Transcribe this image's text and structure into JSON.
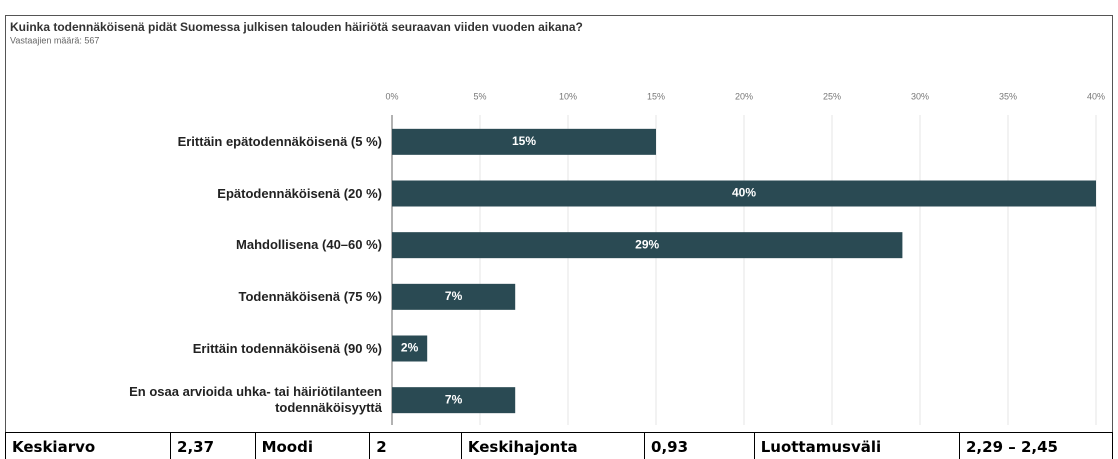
{
  "chart_data": {
    "type": "bar",
    "orientation": "horizontal",
    "title": "Kuinka todennäköisenä pidät Suomessa julkisen talouden häiriötä seuraavan viiden vuoden aikana?",
    "subtitle": "Vastaajien määrä: 567",
    "categories": [
      "Erittäin epätodennäköisenä (5 %)",
      "Epätodennäköisenä (20 %)",
      "Mahdollisena (40–60 %)",
      "Todennäköisenä (75 %)",
      "Erittäin todennäköisenä (90 %)",
      "En osaa arvioida uhka- tai häiriötilanteen todennäköisyyttä"
    ],
    "values": [
      15,
      40,
      29,
      7,
      2,
      7
    ],
    "value_labels": [
      "15%",
      "40%",
      "29%",
      "7%",
      "2%",
      "7%"
    ],
    "color": "#2a4a53",
    "xlim": [
      0,
      40
    ],
    "xticks": [
      {
        "value": 0,
        "label": "0%"
      },
      {
        "value": 5,
        "label": "5%"
      },
      {
        "value": 10,
        "label": "10%"
      },
      {
        "value": 15,
        "label": "15%"
      },
      {
        "value": 20,
        "label": "20%"
      },
      {
        "value": 25,
        "label": "25%"
      },
      {
        "value": 30,
        "label": "30%"
      },
      {
        "value": 35,
        "label": "35%"
      },
      {
        "value": 40,
        "label": "40%"
      }
    ],
    "grid": true
  },
  "stats": [
    {
      "label": "Keskiarvo",
      "value": "2,37"
    },
    {
      "label": "Moodi",
      "value": "2"
    },
    {
      "label": "Keskihajonta",
      "value": "0,93"
    },
    {
      "label": "Luottamusväli",
      "value": "2,29 – 2,45"
    }
  ]
}
